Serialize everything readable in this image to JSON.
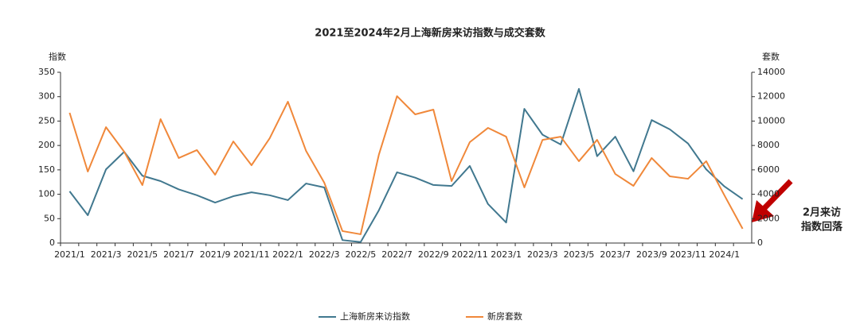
{
  "chart_data": {
    "type": "line",
    "title": "2021至2024年2月上海新房来访指数与成交套数",
    "y_label": "指数",
    "y2_label": "套数",
    "annotation": [
      "2月来访",
      "指数回落"
    ],
    "categories": [
      "2021/1",
      null,
      "2021/3",
      null,
      "2021/5",
      null,
      "2021/7",
      null,
      "2021/9",
      null,
      "2021/11",
      null,
      "2022/1",
      null,
      "2022/3",
      null,
      "2022/5",
      null,
      "2022/7",
      null,
      "2022/9",
      null,
      "2022/11",
      null,
      "2023/1",
      null,
      "2023/3",
      null,
      "2023/5",
      null,
      "2023/7",
      null,
      "2023/9",
      null,
      "2023/11",
      null,
      "2024/1",
      null
    ],
    "series": [
      {
        "name": "上海新房来访指数",
        "color": "#41788f",
        "values": [
          106,
          57,
          151,
          187,
          138,
          127,
          110,
          98,
          83,
          96,
          104,
          98,
          88,
          122,
          114,
          6,
          2,
          67,
          145,
          134,
          119,
          117,
          158,
          80,
          42,
          275,
          222,
          202,
          316,
          178,
          218,
          147,
          252,
          233,
          204,
          151,
          116,
          90
        ]
      },
      {
        "name": "新房套数",
        "color": "#f0883a",
        "axis": "y2",
        "values": [
          10680,
          5860,
          9500,
          7490,
          4750,
          10160,
          6970,
          7620,
          5600,
          8330,
          6380,
          8590,
          11590,
          7550,
          4950,
          980,
          720,
          7230,
          12040,
          10550,
          10940,
          5080,
          8270,
          9440,
          8720,
          4560,
          8460,
          8720,
          6710,
          8460,
          5660,
          4690,
          6970,
          5470,
          5270,
          6710,
          3910,
          1170
        ]
      }
    ],
    "ylim": [
      0,
      350
    ],
    "yticks": [
      0,
      50,
      100,
      150,
      200,
      250,
      300,
      350
    ],
    "y2lim": [
      0,
      14000
    ],
    "y2ticks": [
      0,
      2000,
      4000,
      6000,
      8000,
      10000,
      12000,
      14000
    ],
    "grid": false,
    "legend": "bottom"
  }
}
